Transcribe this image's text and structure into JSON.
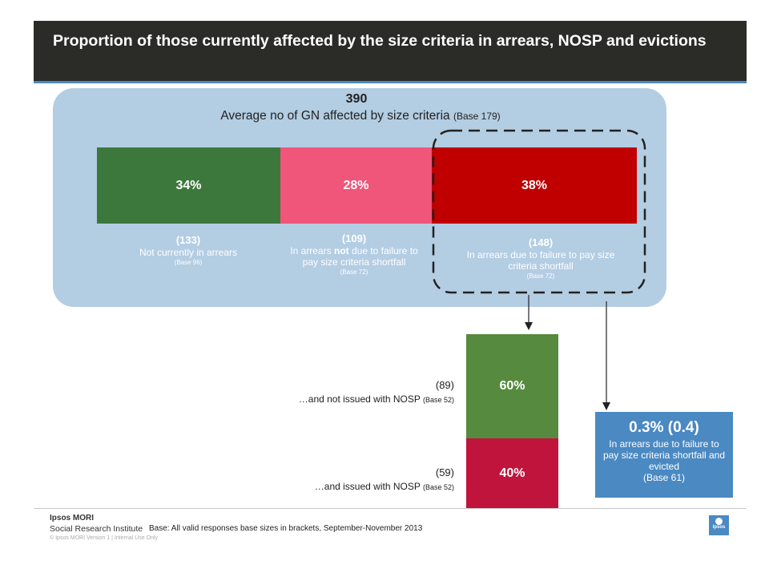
{
  "title": "Proportion of those currently affected by the size criteria in arrears, NOSP and evictions",
  "summary": {
    "value": "390",
    "label": "Average no of GN affected by size criteria",
    "base": "(Base 179)"
  },
  "colors": {
    "green": "#3c783c",
    "pink": "#f0557a",
    "red": "#c00000",
    "green2": "#568a3e",
    "crimson": "#c0143c",
    "blue": "#4a89c2",
    "panel": "#b3cde3"
  },
  "arrears_labels": [
    {
      "count": "(133)",
      "desc": "Not currently in arrears",
      "base": "(Base 96)"
    },
    {
      "count": "(109)",
      "desc_pre": "In arrears ",
      "desc_bold": "not",
      "desc_post": " due to failure to pay size criteria shortfall",
      "base": "(Base 72)"
    },
    {
      "count": "(148)",
      "desc": "In arrears due to failure to pay size criteria shortfall",
      "base": "(Base 72)"
    }
  ],
  "nosp_labels": [
    {
      "count": "(89)",
      "desc": "…and not issued with NOSP",
      "base": "(Base 52)"
    },
    {
      "count": "(59)",
      "desc": "…and issued with NOSP",
      "base": "(Base 52)"
    }
  ],
  "outcome": {
    "value": "0.3% (0.4)",
    "desc": "In arrears due to failure to pay size criteria shortfall and evicted",
    "base": "(Base 61)"
  },
  "footer": {
    "brand_line1": "Ipsos MORI",
    "brand_line2": "Social Research Institute",
    "copyright": "© Ipsos MORI   Version 1 | Internal Use Only",
    "base_note": "Base: All valid responses base sizes in brackets, September-November 2013",
    "logo_text": "Ipsos"
  },
  "chart_data": [
    {
      "type": "bar",
      "orientation": "horizontal-stacked",
      "categories": [
        "Not currently in arrears",
        "In arrears not due to failure to pay size criteria shortfall",
        "In arrears due to failure to pay size criteria shortfall"
      ],
      "values": [
        34,
        28,
        38
      ],
      "value_labels": [
        "34%",
        "28%",
        "38%"
      ],
      "unit": "%"
    },
    {
      "type": "bar",
      "orientation": "vertical-stacked",
      "categories": [
        "…and not issued with NOSP",
        "…and issued with NOSP"
      ],
      "values": [
        60,
        40
      ],
      "value_labels": [
        "60%",
        "40%"
      ],
      "unit": "%"
    }
  ]
}
